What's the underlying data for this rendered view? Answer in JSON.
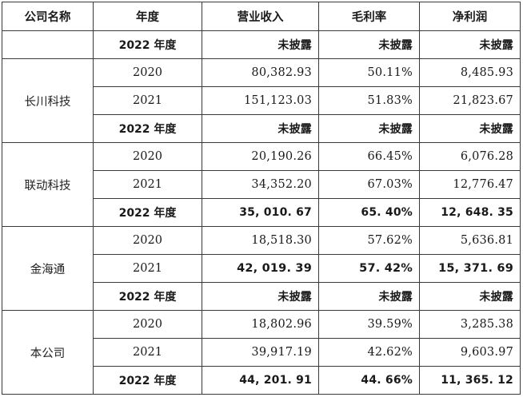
{
  "table": {
    "headers": [
      "公司名称",
      "年度",
      "营业收入",
      "毛利率",
      "净利润"
    ],
    "groups": [
      {
        "company": "",
        "rows": [
          {
            "year": "2022 年度",
            "revenue": "未披露",
            "gross_margin": "未披露",
            "net_profit": "未披露",
            "bold": true
          }
        ]
      },
      {
        "company": "长川科技",
        "rows": [
          {
            "year": "2020",
            "revenue": "80,382.93",
            "gross_margin": "50.11%",
            "net_profit": "8,485.93",
            "bold": false
          },
          {
            "year": "2021",
            "revenue": "151,123.03",
            "gross_margin": "51.83%",
            "net_profit": "21,823.67",
            "bold": false
          },
          {
            "year": "2022 年度",
            "revenue": "未披露",
            "gross_margin": "未披露",
            "net_profit": "未披露",
            "bold": true
          }
        ]
      },
      {
        "company": "联动科技",
        "rows": [
          {
            "year": "2020",
            "revenue": "20,190.26",
            "gross_margin": "66.45%",
            "net_profit": "6,076.28",
            "bold": false
          },
          {
            "year": "2021",
            "revenue": "34,352.20",
            "gross_margin": "67.03%",
            "net_profit": "12,776.47",
            "bold": false
          },
          {
            "year": "2022 年度",
            "revenue": "35, 010. 67",
            "gross_margin": "65. 40%",
            "net_profit": "12, 648. 35",
            "bold": true
          }
        ]
      },
      {
        "company": "金海通",
        "rows": [
          {
            "year": "2020",
            "revenue": "18,518.30",
            "gross_margin": "57.62%",
            "net_profit": "5,636.81",
            "bold": false
          },
          {
            "year": "2021",
            "revenue": "42, 019. 39",
            "gross_margin": "57. 42%",
            "net_profit": "15, 371. 69",
            "bold": false,
            "bold_values": true
          },
          {
            "year": "2022 年度",
            "revenue": "未披露",
            "gross_margin": "未披露",
            "net_profit": "未披露",
            "bold": true
          }
        ]
      },
      {
        "company": "本公司",
        "rows": [
          {
            "year": "2020",
            "revenue": "18,802.96",
            "gross_margin": "39.59%",
            "net_profit": "3,285.38",
            "bold": false
          },
          {
            "year": "2021",
            "revenue": "39,917.19",
            "gross_margin": "42.62%",
            "net_profit": "9,603.97",
            "bold": false
          },
          {
            "year": "2022 年度",
            "revenue": "44, 201. 91",
            "gross_margin": "44. 66%",
            "net_profit": "11, 365. 12",
            "bold": true
          }
        ]
      }
    ]
  },
  "colors": {
    "border": "#3a3a3a",
    "text": "#1a1a1a",
    "background": "#ffffff"
  }
}
